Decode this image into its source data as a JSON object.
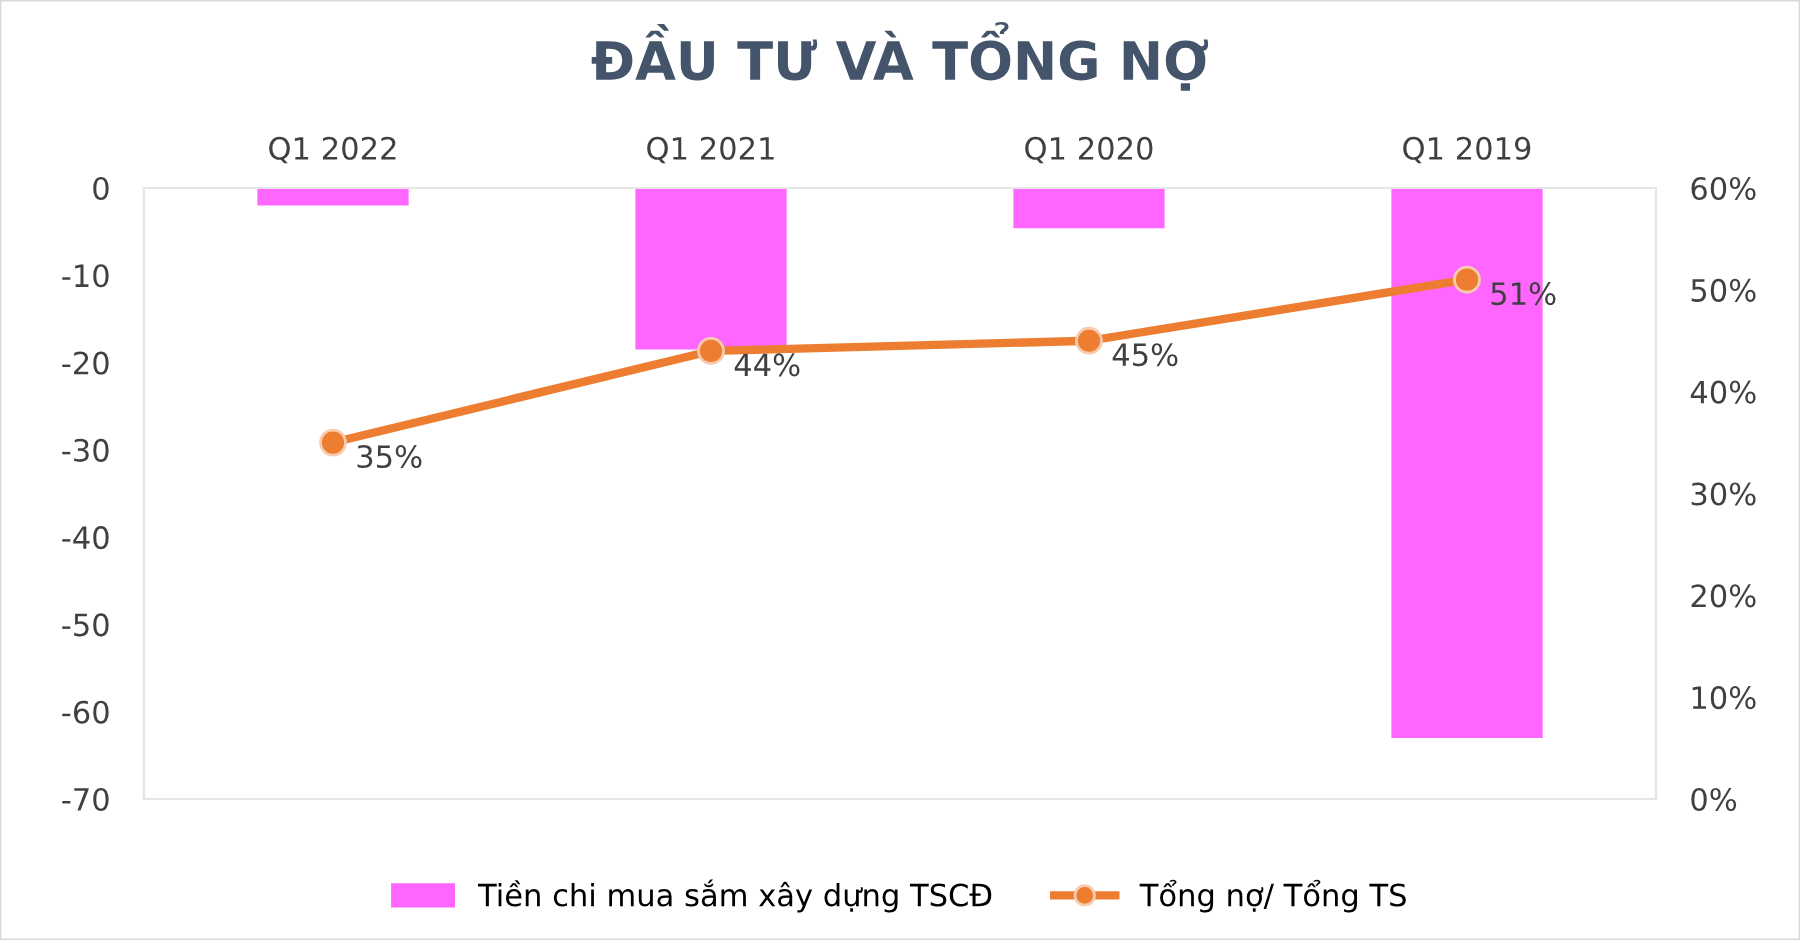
{
  "chart_data": {
    "type": "bar",
    "title": "ĐẦU TƯ VÀ TỔNG NỢ",
    "categories": [
      "Q1 2022",
      "Q1 2021",
      "Q1 2020",
      "Q1 2019"
    ],
    "series": [
      {
        "name": "Tiền chi mua sắm xây dựng TSCĐ",
        "color": "#ff66ff",
        "values": [
          -2,
          -18.5,
          -4.6,
          -63
        ]
      },
      {
        "name": "Tổng nợ/ Tổng TS",
        "type": "line",
        "axis": "y2",
        "color": "#ed7d31",
        "values": [
          35,
          44,
          45,
          51
        ],
        "value_labels": [
          "35%",
          "44%",
          "45%",
          "51%"
        ],
        "marker": "circle"
      }
    ],
    "ylim": [
      -70,
      0
    ],
    "yticks": [
      -70,
      -60,
      -50,
      -40,
      -30,
      -20,
      -10,
      0
    ],
    "y2lim": [
      0,
      60
    ],
    "y2ticks": [
      {
        "value": 0,
        "label": "0%"
      },
      {
        "value": 10,
        "label": "10%"
      },
      {
        "value": 20,
        "label": "20%"
      },
      {
        "value": 30,
        "label": "30%"
      },
      {
        "value": 40,
        "label": "40%"
      },
      {
        "value": 50,
        "label": "50%"
      },
      {
        "value": 60,
        "label": "60%"
      }
    ],
    "grid": false,
    "legend": "bottom"
  }
}
